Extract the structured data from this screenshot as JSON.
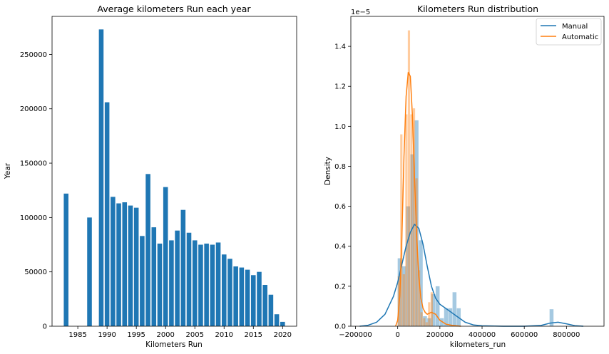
{
  "chart_data": [
    {
      "type": "bar",
      "title": "Average kilometers Run each year",
      "xlabel": "Kilometers Run",
      "ylabel": "Year",
      "xlim": [
        1980.8,
        1981.0
      ],
      "xlim_full": [
        1980.6,
        2022.4
      ],
      "ylim": [
        0,
        285000
      ],
      "xticks": [
        1985,
        1990,
        1995,
        2000,
        2005,
        2010,
        2015,
        2020
      ],
      "yticks": [
        0,
        50000,
        100000,
        150000,
        200000,
        250000
      ],
      "color": "#1f77b4",
      "x": [
        1983,
        1987,
        1989,
        1990,
        1991,
        1992,
        1993,
        1994,
        1995,
        1996,
        1997,
        1998,
        1999,
        2000,
        2001,
        2002,
        2003,
        2004,
        2005,
        2006,
        2007,
        2008,
        2009,
        2010,
        2011,
        2012,
        2013,
        2014,
        2015,
        2016,
        2017,
        2018,
        2019,
        2020
      ],
      "values": [
        122000,
        100000,
        273000,
        206000,
        119000,
        113000,
        114000,
        111000,
        109000,
        83000,
        140000,
        91000,
        76000,
        128000,
        79000,
        88000,
        107000,
        86000,
        79000,
        75000,
        76000,
        75000,
        77000,
        66000,
        62000,
        55000,
        54000,
        52000,
        47000,
        50000,
        38000,
        29000,
        11000,
        4000
      ]
    },
    {
      "type": "histogram+kde",
      "title": "Kilometers Run distribution",
      "xlabel": "kilometers_run",
      "ylabel": "Density",
      "y_offset_label": "1e−5",
      "xlim": [
        -222000,
        978000
      ],
      "ylim": [
        0,
        1.55
      ],
      "xticks": [
        -200000,
        0,
        200000,
        400000,
        600000,
        800000
      ],
      "yticks": [
        0.0,
        0.2,
        0.4,
        0.6,
        0.8,
        1.0,
        1.2,
        1.4
      ],
      "legend": "top-right",
      "series": [
        {
          "name": "Manual",
          "color": "#1f77b4",
          "hist": {
            "bins": [
              [
                0,
                20000,
                0.34
              ],
              [
                20000,
                40000,
                0.3
              ],
              [
                40000,
                60000,
                0.6
              ],
              [
                60000,
                80000,
                0.86
              ],
              [
                80000,
                100000,
                1.03
              ],
              [
                100000,
                120000,
                0.43
              ],
              [
                120000,
                140000,
                0.05
              ],
              [
                140000,
                160000,
                0.04
              ],
              [
                160000,
                180000,
                0.16
              ],
              [
                180000,
                200000,
                0.2
              ],
              [
                200000,
                220000,
                0.04
              ],
              [
                220000,
                240000,
                0.09
              ],
              [
                240000,
                260000,
                0.09
              ],
              [
                260000,
                280000,
                0.17
              ],
              [
                280000,
                300000,
                0.09
              ],
              [
                720000,
                740000,
                0.085
              ]
            ]
          },
          "kde": {
            "x": [
              -180000,
              -140000,
              -100000,
              -60000,
              -20000,
              0,
              20000,
              40000,
              60000,
              80000,
              100000,
              120000,
              140000,
              160000,
              180000,
              200000,
              240000,
              280000,
              320000,
              360000,
              400000,
              500000,
              600000,
              680000,
              720000,
              760000,
              800000,
              840000,
              880000
            ],
            "y": [
              0.0,
              0.005,
              0.02,
              0.06,
              0.15,
              0.22,
              0.31,
              0.4,
              0.47,
              0.51,
              0.49,
              0.41,
              0.3,
              0.2,
              0.14,
              0.11,
              0.08,
              0.05,
              0.02,
              0.006,
              0.002,
              0.0,
              0.0,
              0.004,
              0.015,
              0.02,
              0.012,
              0.003,
              0.0
            ]
          }
        },
        {
          "name": "Automatic",
          "color": "#ff7f0e",
          "hist": {
            "bins": [
              [
                0,
                12000,
                0.25
              ],
              [
                12000,
                24000,
                0.96
              ],
              [
                24000,
                36000,
                0.26
              ],
              [
                36000,
                48000,
                1.06
              ],
              [
                48000,
                60000,
                1.48
              ],
              [
                60000,
                72000,
                1.06
              ],
              [
                72000,
                84000,
                1.09
              ],
              [
                84000,
                96000,
                0.74
              ],
              [
                96000,
                108000,
                0.28
              ],
              [
                108000,
                120000,
                0.07
              ],
              [
                120000,
                132000,
                0.04
              ],
              [
                132000,
                144000,
                0.02
              ],
              [
                144000,
                156000,
                0.12
              ],
              [
                156000,
                168000,
                0.17
              ]
            ]
          },
          "kde": {
            "x": [
              -10000,
              0,
              10000,
              20000,
              30000,
              40000,
              50000,
              60000,
              70000,
              80000,
              90000,
              100000,
              110000,
              120000,
              130000,
              140000,
              160000,
              180000,
              200000,
              230000,
              260000,
              300000
            ],
            "y": [
              0.0,
              0.03,
              0.15,
              0.45,
              0.85,
              1.15,
              1.27,
              1.25,
              1.05,
              0.74,
              0.45,
              0.25,
              0.14,
              0.09,
              0.07,
              0.06,
              0.07,
              0.06,
              0.03,
              0.01,
              0.004,
              0.0
            ]
          }
        }
      ]
    }
  ]
}
